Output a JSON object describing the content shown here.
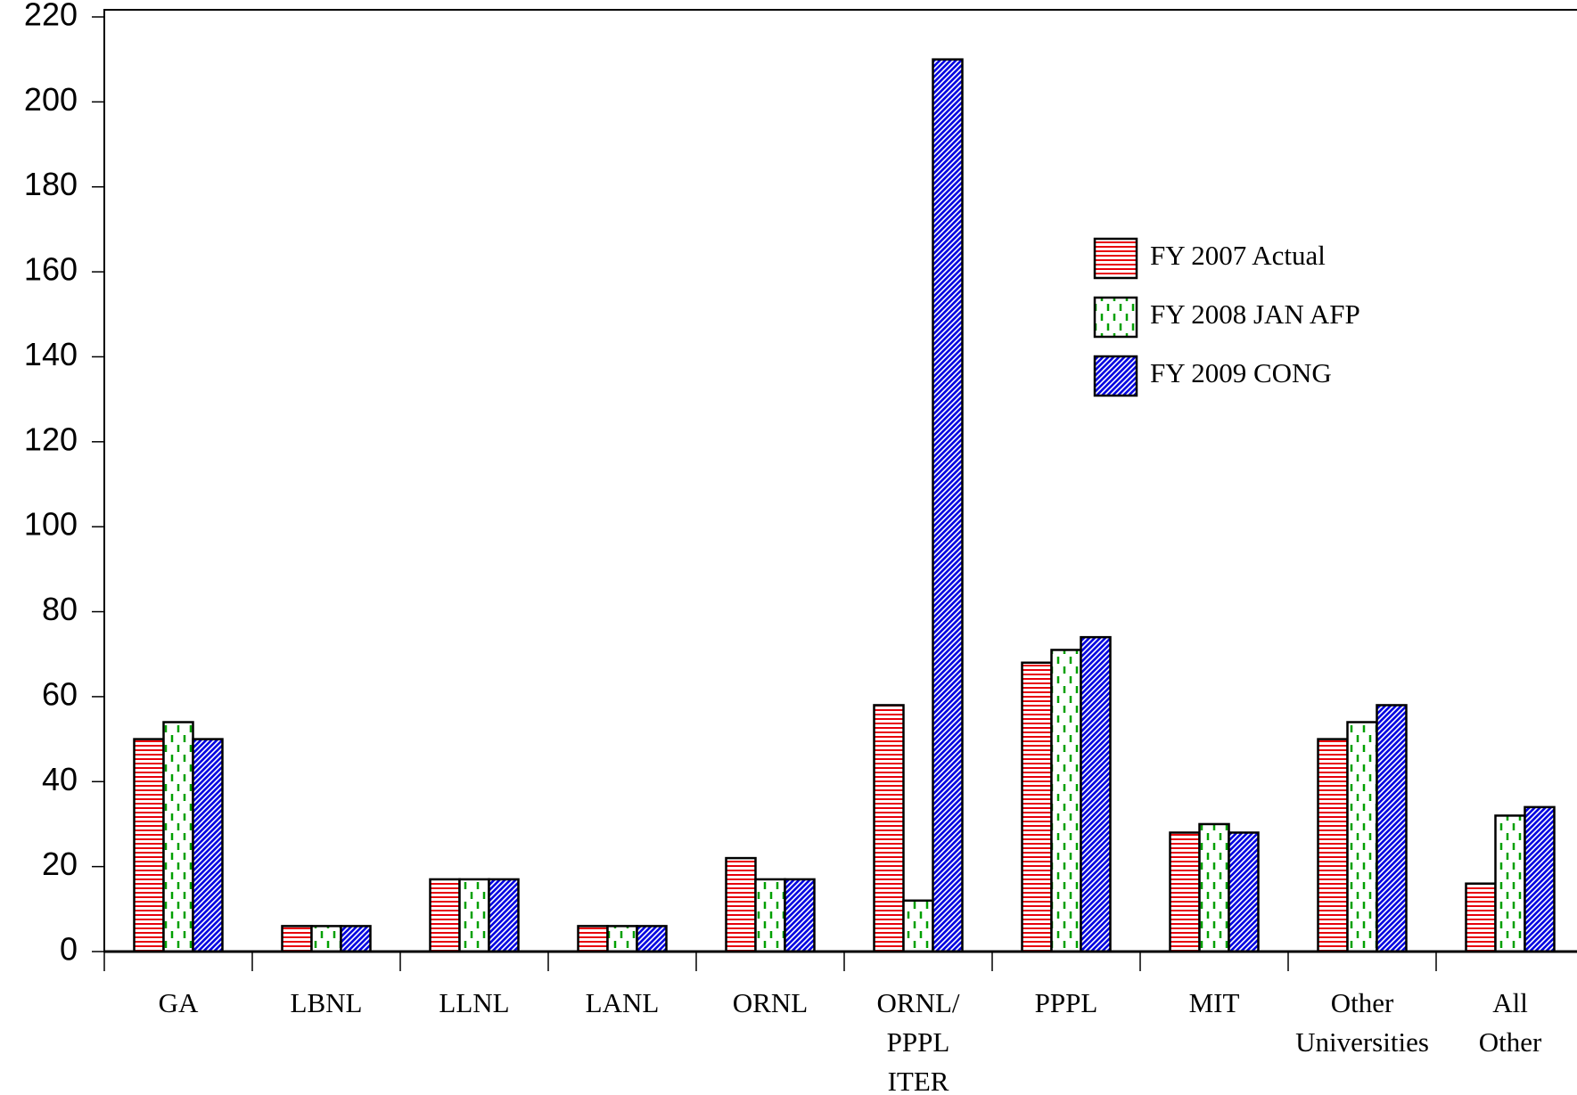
{
  "chart_data": {
    "type": "bar",
    "categories": [
      "GA",
      "LBNL",
      "LLNL",
      "LANL",
      "ORNL",
      "ORNL/\nPPPL\nITER",
      "PPPL",
      "MIT",
      "Other\nUniversities",
      "All\nOther"
    ],
    "series": [
      {
        "name": "FY 2007 Actual",
        "color": "#e8000b",
        "pattern": "horizontal",
        "values": [
          50,
          6,
          17,
          6,
          22,
          58,
          68,
          28,
          50,
          16
        ]
      },
      {
        "name": "FY 2008 JAN AFP",
        "color": "#00a000",
        "pattern": "vertical-dashed",
        "values": [
          54,
          6,
          17,
          6,
          17,
          12,
          71,
          30,
          54,
          32
        ]
      },
      {
        "name": "FY 2009 CONG",
        "color": "#0000e0",
        "pattern": "diagonal",
        "values": [
          50,
          6,
          17,
          6,
          17,
          210,
          74,
          28,
          58,
          34
        ]
      }
    ],
    "ylim": [
      0,
      220
    ],
    "yticks": [
      0,
      20,
      40,
      60,
      80,
      100,
      120,
      140,
      160,
      180,
      200,
      220
    ],
    "legend": "upper right"
  }
}
